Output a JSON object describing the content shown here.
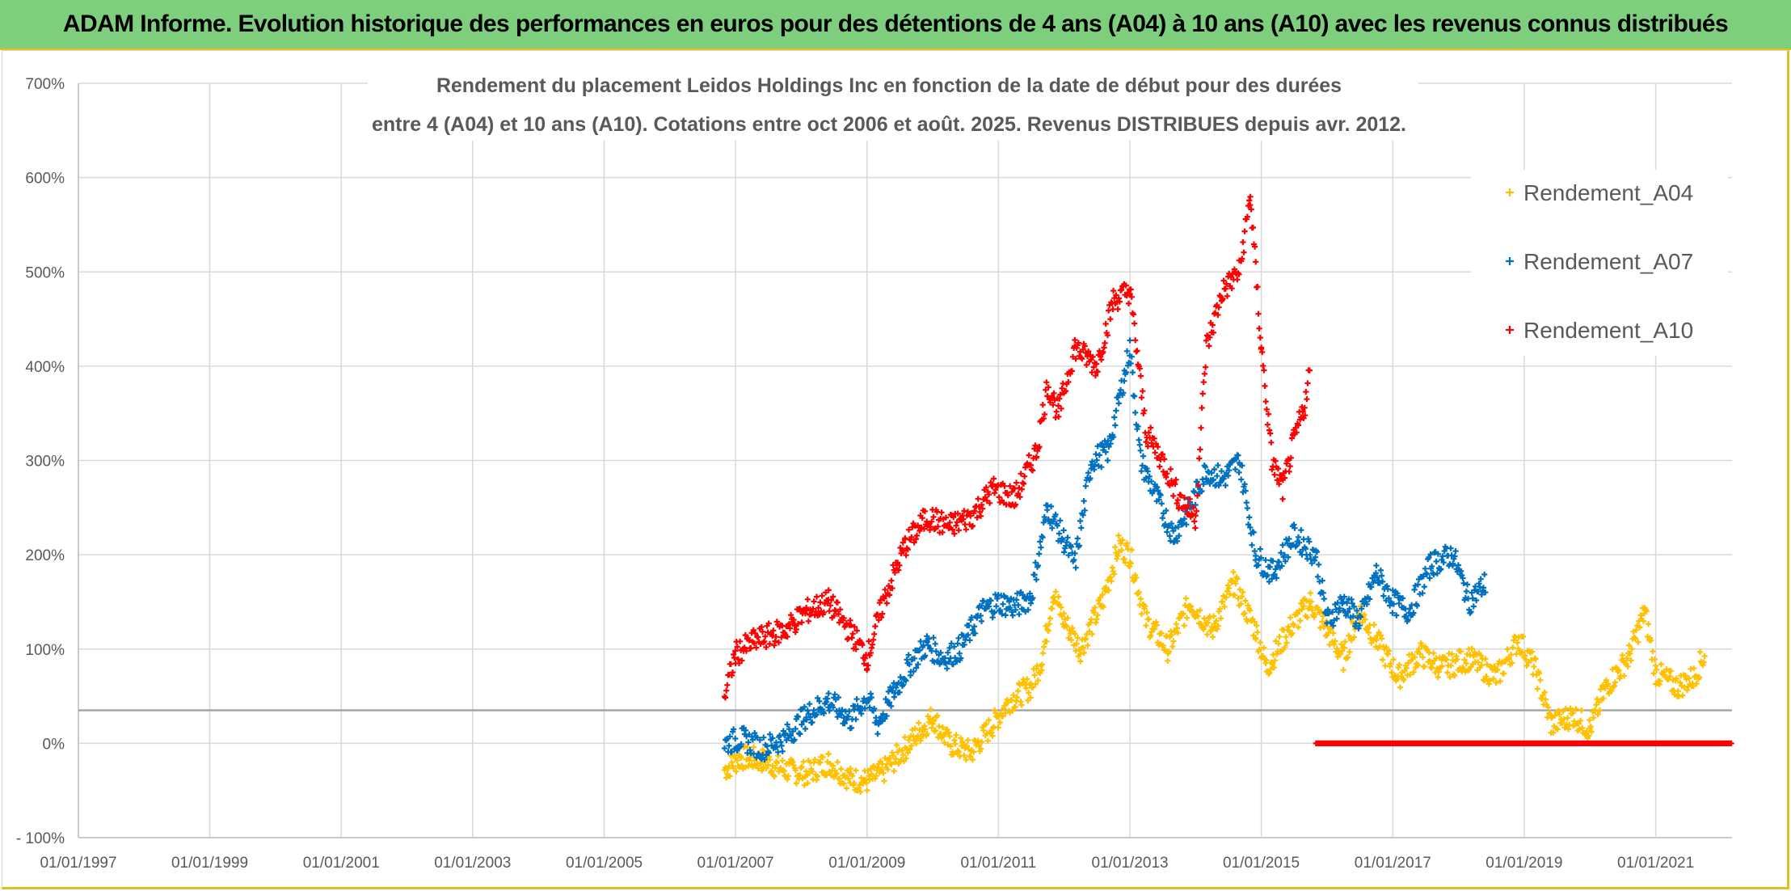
{
  "banner": {
    "title": "ADAM Informe. Evolution historique des performances en euros pour des détentions de 4 ans (A04) à 10 ans (A10) avec les revenus connus distribués"
  },
  "chart_data": {
    "type": "scatter",
    "title_line1": "Rendement du placement Leidos Holdings Inc en fonction de la date de début pour des durées",
    "title_line2": "entre 4 (A04) et 10 ans (A10). Cotations entre oct 2006 et août. 2025. Revenus DISTRIBUES depuis avr. 2012.",
    "x_axis": {
      "type": "date",
      "min": "1997-01-01",
      "max": "2022-03-01",
      "ticks": [
        "01/01/1997",
        "01/01/1999",
        "01/01/2001",
        "01/01/2003",
        "01/01/2005",
        "01/01/2007",
        "01/01/2009",
        "01/01/2011",
        "01/01/2013",
        "01/01/2015",
        "01/01/2017",
        "01/01/2019",
        "01/01/2021"
      ],
      "tick_dates": [
        "1997-01-01",
        "1999-01-01",
        "2001-01-01",
        "2003-01-01",
        "2005-01-01",
        "2007-01-01",
        "2009-01-01",
        "2011-01-01",
        "2013-01-01",
        "2015-01-01",
        "2017-01-01",
        "2019-01-01",
        "2021-01-01"
      ]
    },
    "y_axis": {
      "min": -100,
      "max": 700,
      "unit": "%",
      "ticks": [
        "- 100%",
        "0%",
        "100%",
        "200%",
        "300%",
        "400%",
        "500%",
        "600%",
        "700%"
      ],
      "tick_values": [
        -100,
        0,
        100,
        200,
        300,
        400,
        500,
        600,
        700
      ]
    },
    "grid": true,
    "reference_line_value": 35,
    "legend_position": "top-right",
    "marker": "+",
    "series": [
      {
        "name": "Rendement_A04",
        "color": "#ffc000",
        "points": [
          [
            "2006-11-01",
            -28
          ],
          [
            "2007-02-01",
            -15
          ],
          [
            "2007-06-01",
            -18
          ],
          [
            "2007-10-01",
            -28
          ],
          [
            "2008-02-01",
            -32
          ],
          [
            "2008-06-01",
            -20
          ],
          [
            "2008-10-01",
            -38
          ],
          [
            "2009-01-01",
            -40
          ],
          [
            "2009-04-01",
            -30
          ],
          [
            "2009-08-01",
            -5
          ],
          [
            "2009-11-01",
            15
          ],
          [
            "2010-01-01",
            28
          ],
          [
            "2010-04-01",
            0
          ],
          [
            "2010-08-01",
            -10
          ],
          [
            "2010-12-01",
            20
          ],
          [
            "2011-03-01",
            45
          ],
          [
            "2011-07-01",
            60
          ],
          [
            "2011-09-01",
            90
          ],
          [
            "2011-11-01",
            160
          ],
          [
            "2012-01-01",
            130
          ],
          [
            "2012-04-01",
            100
          ],
          [
            "2012-08-01",
            150
          ],
          [
            "2012-11-01",
            210
          ],
          [
            "2013-01-01",
            200
          ],
          [
            "2013-04-01",
            130
          ],
          [
            "2013-08-01",
            100
          ],
          [
            "2013-12-01",
            150
          ],
          [
            "2014-04-01",
            120
          ],
          [
            "2014-08-01",
            170
          ],
          [
            "2014-12-01",
            120
          ],
          [
            "2015-02-01",
            80
          ],
          [
            "2015-06-01",
            120
          ],
          [
            "2015-10-01",
            150
          ],
          [
            "2016-01-01",
            120
          ],
          [
            "2016-04-01",
            90
          ],
          [
            "2016-07-01",
            140
          ],
          [
            "2016-10-01",
            110
          ],
          [
            "2017-02-01",
            70
          ],
          [
            "2017-06-01",
            95
          ],
          [
            "2017-10-01",
            80
          ],
          [
            "2018-03-01",
            90
          ],
          [
            "2018-08-01",
            70
          ],
          [
            "2018-12-01",
            110
          ],
          [
            "2019-03-01",
            80
          ],
          [
            "2019-06-01",
            20
          ],
          [
            "2019-10-01",
            30
          ],
          [
            "2020-01-01",
            15
          ],
          [
            "2020-04-01",
            60
          ],
          [
            "2020-08-01",
            90
          ],
          [
            "2020-11-01",
            140
          ],
          [
            "2021-01-01",
            75
          ],
          [
            "2021-05-01",
            60
          ],
          [
            "2021-08-01",
            70
          ],
          [
            "2021-10-01",
            95
          ]
        ]
      },
      {
        "name": "Rendement_A07",
        "color": "#0070c0",
        "points": [
          [
            "2006-11-01",
            0
          ],
          [
            "2007-02-01",
            5
          ],
          [
            "2007-06-01",
            -5
          ],
          [
            "2007-10-01",
            5
          ],
          [
            "2008-02-01",
            30
          ],
          [
            "2008-06-01",
            45
          ],
          [
            "2008-10-01",
            25
          ],
          [
            "2009-01-01",
            50
          ],
          [
            "2009-03-01",
            20
          ],
          [
            "2009-06-01",
            55
          ],
          [
            "2009-09-01",
            85
          ],
          [
            "2009-12-01",
            105
          ],
          [
            "2010-03-01",
            90
          ],
          [
            "2010-06-01",
            100
          ],
          [
            "2010-10-01",
            140
          ],
          [
            "2011-01-01",
            150
          ],
          [
            "2011-04-01",
            145
          ],
          [
            "2011-07-01",
            155
          ],
          [
            "2011-10-01",
            250
          ],
          [
            "2012-01-01",
            215
          ],
          [
            "2012-03-01",
            190
          ],
          [
            "2012-06-01",
            300
          ],
          [
            "2012-09-01",
            310
          ],
          [
            "2012-12-01",
            390
          ],
          [
            "2013-01-01",
            420
          ],
          [
            "2013-03-01",
            300
          ],
          [
            "2013-06-01",
            260
          ],
          [
            "2013-09-01",
            220
          ],
          [
            "2013-12-01",
            250
          ],
          [
            "2014-03-01",
            290
          ],
          [
            "2014-06-01",
            280
          ],
          [
            "2014-09-01",
            300
          ],
          [
            "2014-12-01",
            200
          ],
          [
            "2015-03-01",
            180
          ],
          [
            "2015-07-01",
            220
          ],
          [
            "2015-11-01",
            200
          ],
          [
            "2016-01-01",
            130
          ],
          [
            "2016-04-01",
            150
          ],
          [
            "2016-07-01",
            130
          ],
          [
            "2016-10-01",
            180
          ],
          [
            "2017-01-01",
            150
          ],
          [
            "2017-04-01",
            140
          ],
          [
            "2017-08-01",
            190
          ],
          [
            "2017-12-01",
            200
          ],
          [
            "2018-03-01",
            150
          ],
          [
            "2018-06-01",
            170
          ]
        ]
      },
      {
        "name": "Rendement_A10",
        "color": "#ff0000",
        "points": [
          [
            "2006-11-01",
            50
          ],
          [
            "2007-01-01",
            95
          ],
          [
            "2007-05-01",
            110
          ],
          [
            "2007-10-01",
            120
          ],
          [
            "2008-02-01",
            140
          ],
          [
            "2008-06-01",
            150
          ],
          [
            "2008-11-01",
            110
          ],
          [
            "2009-01-01",
            90
          ],
          [
            "2009-04-01",
            150
          ],
          [
            "2009-08-01",
            210
          ],
          [
            "2009-12-01",
            240
          ],
          [
            "2010-04-01",
            230
          ],
          [
            "2010-08-01",
            240
          ],
          [
            "2010-12-01",
            270
          ],
          [
            "2011-04-01",
            260
          ],
          [
            "2011-08-01",
            310
          ],
          [
            "2011-10-01",
            380
          ],
          [
            "2011-12-01",
            350
          ],
          [
            "2012-03-01",
            420
          ],
          [
            "2012-07-01",
            400
          ],
          [
            "2012-10-01",
            470
          ],
          [
            "2013-01-01",
            480
          ],
          [
            "2013-04-01",
            330
          ],
          [
            "2013-07-01",
            300
          ],
          [
            "2013-10-01",
            260
          ],
          [
            "2014-01-01",
            240
          ],
          [
            "2014-03-01",
            420
          ],
          [
            "2014-06-01",
            480
          ],
          [
            "2014-09-01",
            500
          ],
          [
            "2014-11-01",
            580
          ],
          [
            "2015-01-01",
            420
          ],
          [
            "2015-03-01",
            300
          ],
          [
            "2015-05-01",
            270
          ],
          [
            "2015-07-01",
            320
          ],
          [
            "2015-09-01",
            360
          ],
          [
            "2015-10-01",
            400
          ],
          [
            "2015-11-01",
            0
          ],
          [
            "2017-01-01",
            0
          ],
          [
            "2019-01-01",
            0
          ],
          [
            "2021-01-01",
            0
          ],
          [
            "2022-03-01",
            0
          ]
        ]
      }
    ]
  }
}
